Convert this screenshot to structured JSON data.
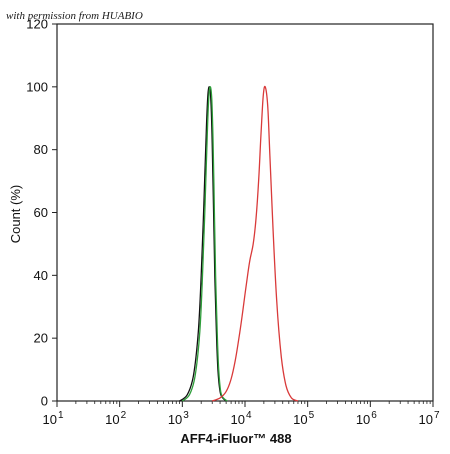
{
  "watermark": "with permission from HUABIO",
  "chart_data": {
    "type": "line",
    "xlabel": "AFF4-iFluor™ 488",
    "ylabel": "Count (%)",
    "x_scale": "log",
    "xlim": [
      10,
      10000000
    ],
    "ylim": [
      0,
      120
    ],
    "grid": false,
    "y_ticks": [
      0,
      20,
      40,
      60,
      80,
      100,
      120
    ],
    "y_tick_labels": [
      "0",
      "20",
      "40",
      "60",
      "80",
      "100",
      "120"
    ],
    "x_ticks": [
      {
        "value": 10,
        "base": "10",
        "exp": "1"
      },
      {
        "value": 100,
        "base": "10",
        "exp": "2"
      },
      {
        "value": 1000,
        "base": "10",
        "exp": "3"
      },
      {
        "value": 10000,
        "base": "10",
        "exp": "4"
      },
      {
        "value": 100000,
        "base": "10",
        "exp": "5"
      },
      {
        "value": 1000000,
        "base": "10",
        "exp": "6"
      },
      {
        "value": 10000000,
        "base": "10",
        "exp": "7"
      }
    ],
    "series": [
      {
        "color": "#111111",
        "x": [
          900,
          1200,
          1500,
          1800,
          2000,
          2200,
          2400,
          2550,
          2700,
          2850,
          3000,
          3150,
          3300,
          3500,
          3700,
          4000,
          4400,
          5000
        ],
        "y": [
          0,
          2,
          8,
          22,
          40,
          62,
          85,
          97,
          100,
          96,
          82,
          60,
          40,
          22,
          10,
          3,
          1,
          0
        ]
      },
      {
        "color": "#2e9e3a",
        "x": [
          1000,
          1300,
          1600,
          1900,
          2100,
          2300,
          2500,
          2650,
          2800,
          2950,
          3100,
          3250,
          3400,
          3600,
          3800,
          4100,
          4500,
          5200
        ],
        "y": [
          0,
          2,
          8,
          22,
          40,
          62,
          85,
          97,
          100,
          96,
          82,
          60,
          40,
          22,
          10,
          3,
          1,
          0
        ]
      },
      {
        "color": "#d93a3a",
        "x": [
          3000,
          4000,
          5000,
          6000,
          7000,
          8000,
          9000,
          10000,
          11000,
          12000,
          13500,
          15000,
          16500,
          18000,
          19500,
          21000,
          23000,
          25000,
          28000,
          32000,
          38000,
          45000,
          55000,
          70000
        ],
        "y": [
          0,
          1,
          3,
          7,
          13,
          20,
          27,
          34,
          40,
          45,
          50,
          58,
          70,
          85,
          97,
          100,
          94,
          78,
          55,
          32,
          14,
          5,
          1,
          0
        ]
      }
    ]
  }
}
